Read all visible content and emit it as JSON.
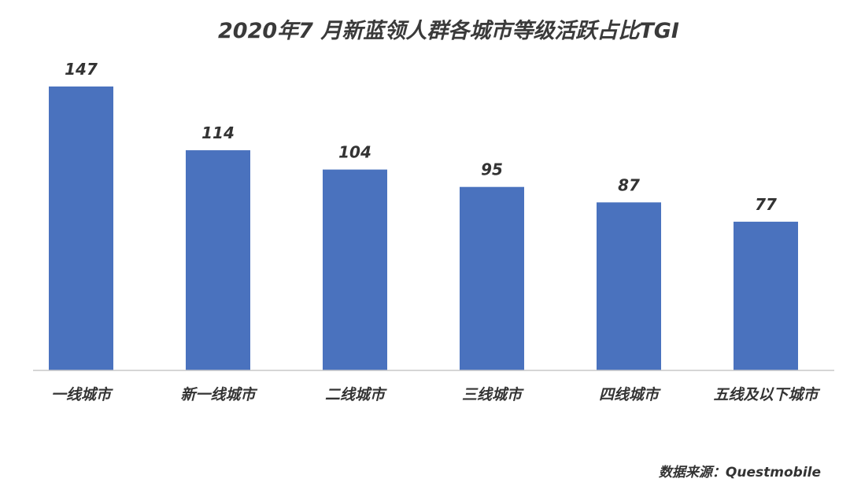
{
  "chart_data": {
    "type": "bar",
    "title": "2020年7 月新蓝领人群各城市等级活跃占比TGI",
    "categories": [
      "一线城市",
      "新一线城市",
      "二线城市",
      "三线城市",
      "四线城市",
      "五线及以下城市"
    ],
    "values": [
      147,
      114,
      104,
      95,
      87,
      77
    ],
    "xlabel": "",
    "ylabel": "",
    "ylim": [
      0,
      147
    ],
    "grid": false,
    "legend": "none",
    "data_labels": true
  },
  "colors": {
    "bar": "#4A72BE",
    "axis": "#c8c8c8"
  },
  "source": "数据来源：Questmobile"
}
